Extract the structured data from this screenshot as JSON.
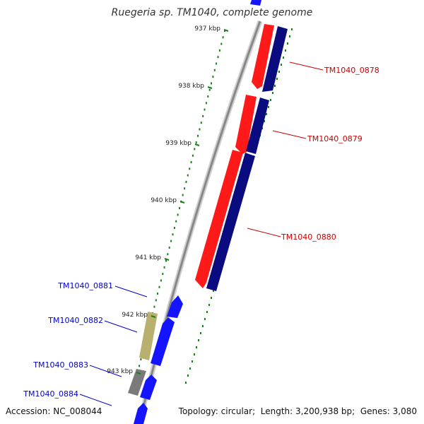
{
  "title": "Ruegeria sp. TM1040, complete genome",
  "footer": {
    "accession_label": "Accession:",
    "accession": "NC_008044",
    "topology_label": "Topology:",
    "topology": "circular",
    "length_label": "Length:",
    "length": "3,200,938 bp",
    "genes_label": "Genes:",
    "genes": "3,080"
  },
  "colors": {
    "forward_cds": "#ff0000",
    "forward_dark": "#0b0b80",
    "reverse_cds": "#0000ff",
    "backbone": "#888888",
    "tick": "#1a7f1a",
    "forward_label": "#cc0000",
    "reverse_label": "#0000cc",
    "pseudo": "#b9b070",
    "other": "#777777"
  },
  "tick_labels": [
    "937 kbp",
    "938 kbp",
    "939 kbp",
    "940 kbp",
    "941 kbp",
    "942 kbp",
    "943 kbp"
  ],
  "gene_labels": [
    {
      "name": "TM1040_0878",
      "strand": "forward"
    },
    {
      "name": "TM1040_0879",
      "strand": "forward"
    },
    {
      "name": "TM1040_0880",
      "strand": "forward"
    },
    {
      "name": "TM1040_0881",
      "strand": "reverse"
    },
    {
      "name": "TM1040_0882",
      "strand": "reverse"
    },
    {
      "name": "TM1040_0883",
      "strand": "reverse"
    },
    {
      "name": "TM1040_0884",
      "strand": "reverse"
    }
  ]
}
